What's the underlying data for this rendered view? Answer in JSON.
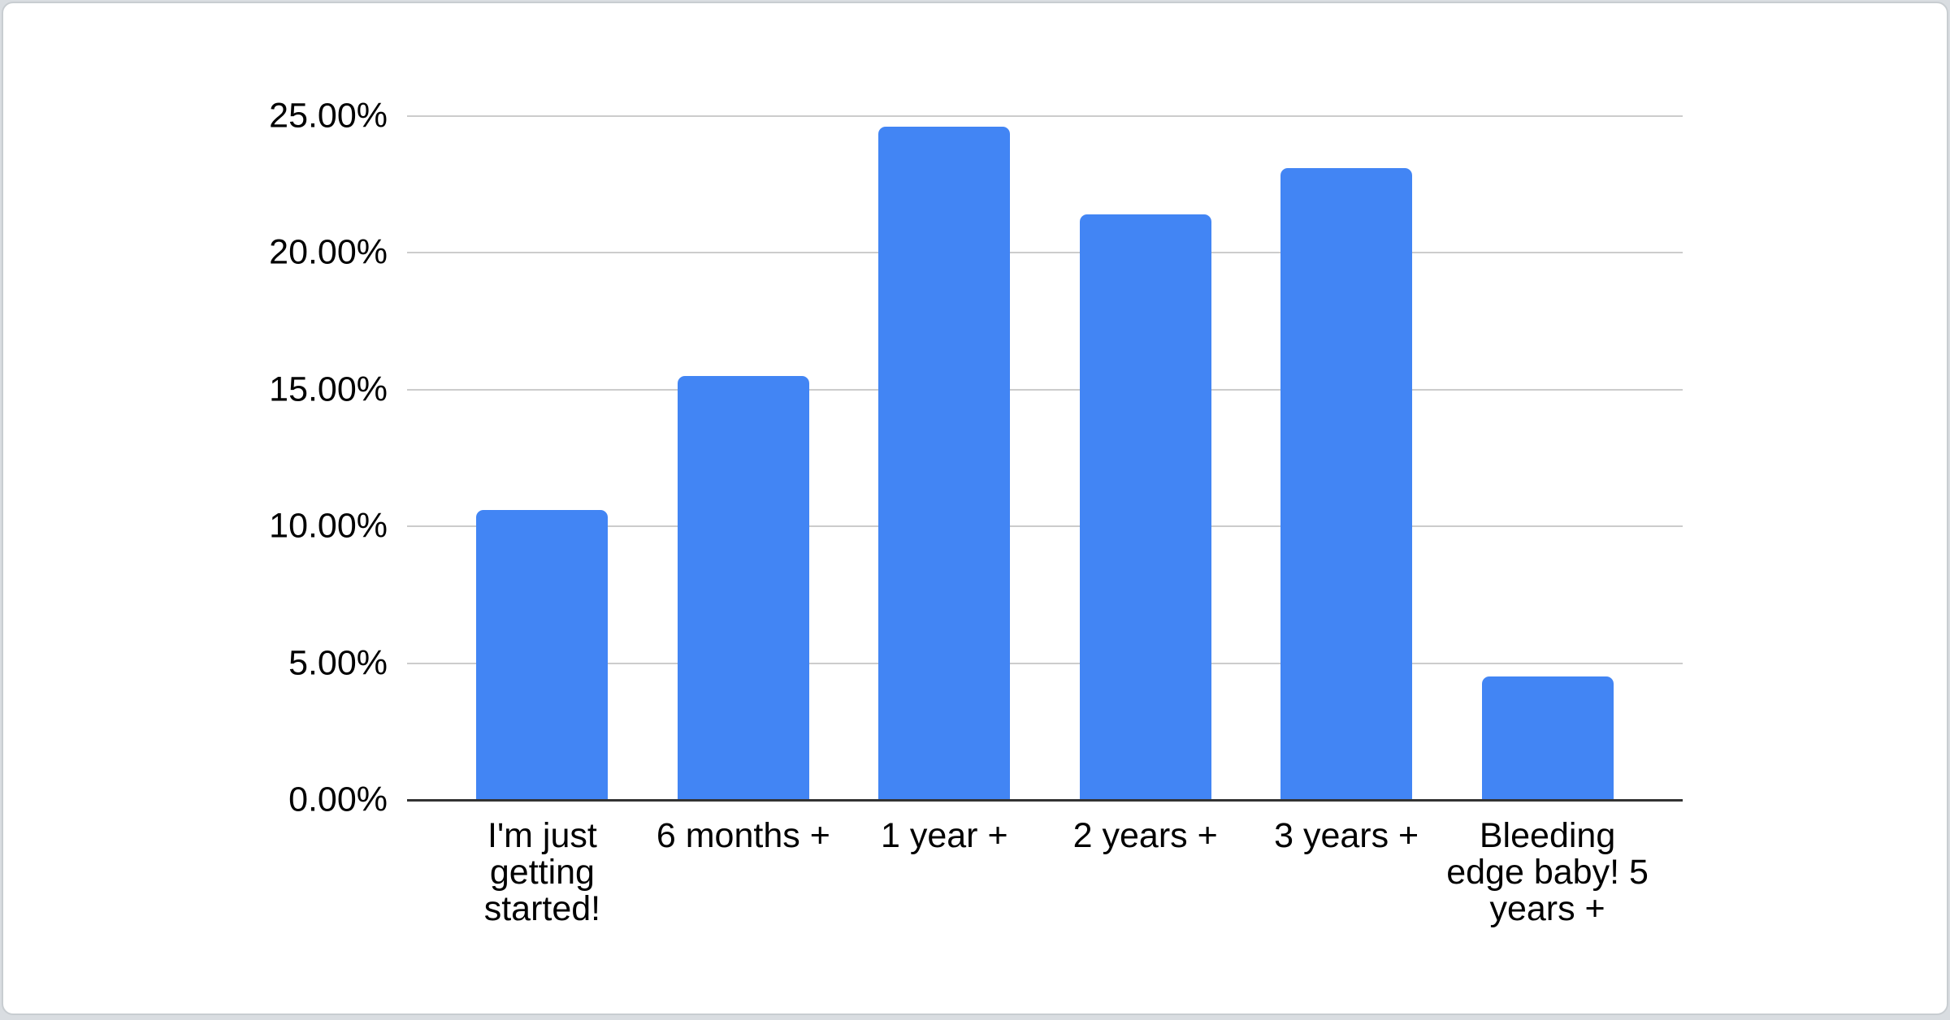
{
  "chart_data": {
    "type": "bar",
    "title": "",
    "xlabel": "",
    "ylabel": "",
    "categories": [
      "I'm just getting started!",
      "6 months +",
      "1 year +",
      "2 years +",
      "3 years +",
      "Bleeding edge baby! 5 years +"
    ],
    "values": [
      10.6,
      15.5,
      24.6,
      21.4,
      23.1,
      4.5
    ],
    "value_unit": "%",
    "ylim": [
      0,
      25
    ],
    "ytick_interval": 5,
    "ytick_labels": [
      "0.00%",
      "5.00%",
      "10.00%",
      "15.00%",
      "20.00%",
      "25.00%"
    ],
    "grid": true,
    "legend_position": "none",
    "bar_color": "#4285f4",
    "gridline_color": "#cccccc",
    "axis_line_color": "#333333",
    "text_color": "#000000",
    "card_background": "#ffffff",
    "page_background": "#d9dde1"
  }
}
